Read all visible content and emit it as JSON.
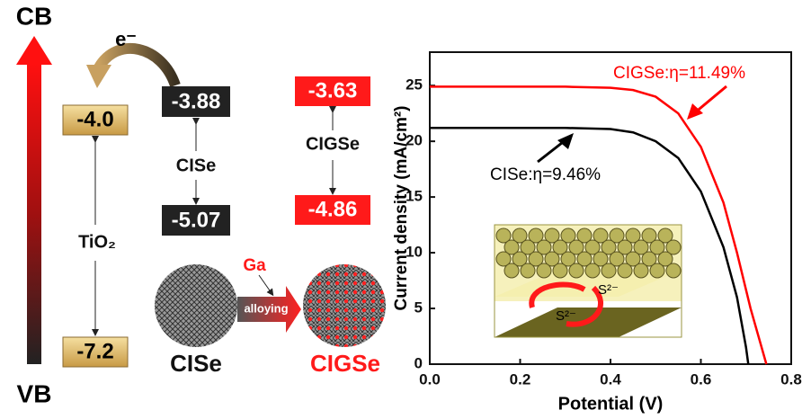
{
  "diagram": {
    "cb": "CB",
    "vb": "VB",
    "electron": "e⁻",
    "tio2": {
      "cb": "-4.0",
      "vb": "-7.2",
      "label": "TiO₂"
    },
    "cise": {
      "cb": "-3.88",
      "vb": "-5.07",
      "label": "CISe"
    },
    "cigse": {
      "cb": "-3.63",
      "vb": "-4.86",
      "label": "CIGSe"
    },
    "ga": "Ga",
    "alloying": "alloying",
    "np_left": "CISe",
    "np_right": "CIGSe",
    "inset_labels": [
      "S²⁻",
      "S²⁻"
    ]
  },
  "chart_data": {
    "type": "line",
    "xlabel": "Potential (V)",
    "ylabel": "Current density (mA/cm²)",
    "xlim": [
      0,
      0.8
    ],
    "ylim": [
      0,
      28
    ],
    "xticks": [
      {
        "value": 0,
        "label": "0.0"
      },
      0.2,
      0.4,
      0.6,
      0.8
    ],
    "yticks": [
      0,
      5,
      10,
      15,
      20,
      25
    ],
    "annotations": [
      "CIGSe:η=11.49%",
      "CISe:η=9.46%"
    ],
    "series": [
      {
        "color": "#000000",
        "x": [
          0,
          0.1,
          0.2,
          0.3,
          0.4,
          0.45,
          0.5,
          0.55,
          0.6,
          0.65,
          0.68,
          0.7,
          0.705
        ],
        "values": [
          21.2,
          21.2,
          21.2,
          21.2,
          21.1,
          20.8,
          20.0,
          18.5,
          15.5,
          10.5,
          6.0,
          1.5,
          0
        ]
      },
      {
        "color": "#ff0000",
        "x": [
          0,
          0.1,
          0.2,
          0.3,
          0.4,
          0.45,
          0.5,
          0.55,
          0.6,
          0.65,
          0.68,
          0.71,
          0.745
        ],
        "values": [
          24.9,
          24.9,
          24.9,
          24.9,
          24.8,
          24.6,
          24.0,
          22.5,
          19.5,
          14.5,
          10.0,
          5.0,
          0
        ]
      }
    ]
  }
}
